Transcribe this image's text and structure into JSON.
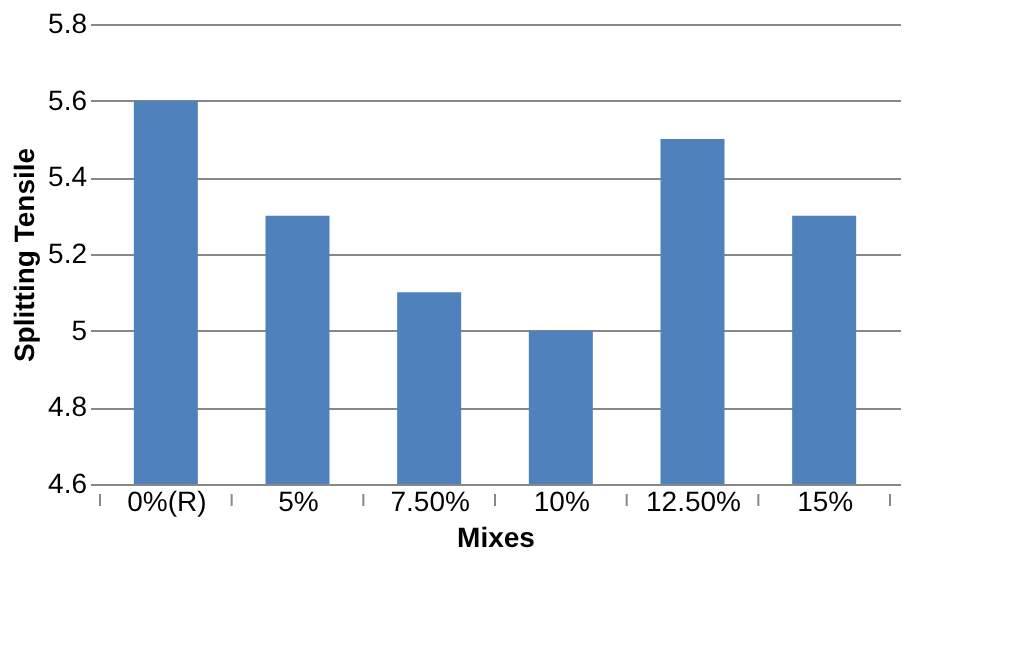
{
  "chart_data": {
    "type": "bar",
    "xlabel": "Mixes",
    "ylabel": "Splitting Tensile",
    "categories": [
      "0%(R)",
      "5%",
      "7.50%",
      "10%",
      "12.50%",
      "15%"
    ],
    "values": [
      5.6,
      5.3,
      5.1,
      5.0,
      5.5,
      5.3
    ],
    "color": "#4f81bd",
    "ylim": [
      4.6,
      5.8
    ],
    "yticks": [
      4.6,
      4.8,
      5,
      5.2,
      5.4,
      5.6,
      5.8
    ],
    "grid": "y"
  }
}
